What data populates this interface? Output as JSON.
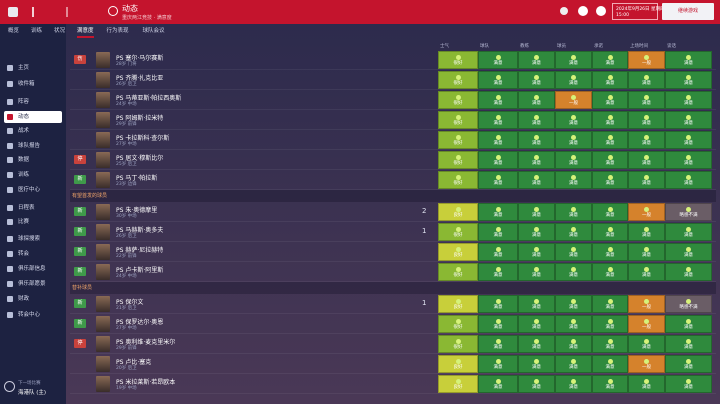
{
  "header": {
    "title": "动态",
    "subtitle": "重庆两江竞技 · 满意度",
    "date": "2024年9月26日 星期四",
    "time": "15:00",
    "continue": "继续游戏"
  },
  "tabs": [
    "概览",
    "训练",
    "状况",
    "满意度",
    "行为表现",
    "球队会议"
  ],
  "active_tab": 3,
  "sidebar": [
    "主页",
    "收件箱",
    "阵容",
    "动态",
    "战术",
    "球队报告",
    "数据",
    "训练",
    "医疗中心",
    "日程表",
    "比赛",
    "球探搜索",
    "转会",
    "俱乐部信息",
    "俱乐部愿景",
    "财政",
    "转会中心"
  ],
  "active_sidebar": 3,
  "footer": {
    "label": "下一场比赛",
    "value": "海港队 (主)"
  },
  "columns": [
    "士气",
    "球队",
    "教练",
    "球员",
    "承诺",
    "上场时间",
    "谈话"
  ],
  "groups": [
    {
      "title": null,
      "players": [
        {
          "tag": "伤",
          "tag_color": "#c9423c",
          "name": "PS 塞尔·马尔赛斯",
          "info": "28岁 门将",
          "sel": null,
          "cells": [
            [
              "很好",
              "#8ab833"
            ],
            [
              "满意",
              "#2f8a3d"
            ],
            [
              "满意",
              "#2f8a3d"
            ],
            [
              "满意",
              "#2f8a3d"
            ],
            [
              "满意",
              "#2f8a3d"
            ],
            [
              "一般",
              "#d5822c"
            ],
            [
              "满意",
              "#2f8a3d"
            ]
          ]
        },
        {
          "tag": null,
          "tag_color": null,
          "name": "PS 齐腾·扎克比亚",
          "info": "26岁 后卫",
          "sel": null,
          "cells": [
            [
              "很好",
              "#8ab833"
            ],
            [
              "满意",
              "#2f8a3d"
            ],
            [
              "满意",
              "#2f8a3d"
            ],
            [
              "满意",
              "#2f8a3d"
            ],
            [
              "满意",
              "#2f8a3d"
            ],
            [
              "满意",
              "#2f8a3d"
            ],
            [
              "满意",
              "#2f8a3d"
            ]
          ]
        },
        {
          "tag": null,
          "tag_color": null,
          "name": "PS 马蒂亚斯·帕拉西奥斯",
          "info": "24岁 中场",
          "sel": null,
          "cells": [
            [
              "很好",
              "#8ab833"
            ],
            [
              "满意",
              "#2f8a3d"
            ],
            [
              "满意",
              "#2f8a3d"
            ],
            [
              "一般",
              "#d5822c"
            ],
            [
              "满意",
              "#2f8a3d"
            ],
            [
              "满意",
              "#2f8a3d"
            ],
            [
              "满意",
              "#2f8a3d"
            ]
          ]
        },
        {
          "tag": null,
          "tag_color": null,
          "name": "PS 阿姆斯·拉米特",
          "info": "29岁 前锋",
          "sel": null,
          "cells": [
            [
              "很好",
              "#8ab833"
            ],
            [
              "满意",
              "#2f8a3d"
            ],
            [
              "满意",
              "#2f8a3d"
            ],
            [
              "满意",
              "#2f8a3d"
            ],
            [
              "满意",
              "#2f8a3d"
            ],
            [
              "满意",
              "#2f8a3d"
            ],
            [
              "满意",
              "#2f8a3d"
            ]
          ]
        },
        {
          "tag": null,
          "tag_color": null,
          "name": "PS 卡拉斯科·查尔斯",
          "info": "27岁 中场",
          "sel": null,
          "cells": [
            [
              "很好",
              "#8ab833"
            ],
            [
              "满意",
              "#2f8a3d"
            ],
            [
              "满意",
              "#2f8a3d"
            ],
            [
              "满意",
              "#2f8a3d"
            ],
            [
              "满意",
              "#2f8a3d"
            ],
            [
              "满意",
              "#2f8a3d"
            ],
            [
              "满意",
              "#2f8a3d"
            ]
          ]
        },
        {
          "tag": "停",
          "tag_color": "#c9423c",
          "name": "PS 居文·穆斯比尔",
          "info": "25岁 后卫",
          "sel": null,
          "cells": [
            [
              "很好",
              "#8ab833"
            ],
            [
              "满意",
              "#2f8a3d"
            ],
            [
              "满意",
              "#2f8a3d"
            ],
            [
              "满意",
              "#2f8a3d"
            ],
            [
              "满意",
              "#2f8a3d"
            ],
            [
              "满意",
              "#2f8a3d"
            ],
            [
              "满意",
              "#2f8a3d"
            ]
          ]
        },
        {
          "tag": "新",
          "tag_color": "#3f9a4a",
          "name": "PS 马丁·帕拉斯",
          "info": "23岁 边锋",
          "sel": null,
          "cells": [
            [
              "很好",
              "#8ab833"
            ],
            [
              "满意",
              "#2f8a3d"
            ],
            [
              "满意",
              "#2f8a3d"
            ],
            [
              "满意",
              "#2f8a3d"
            ],
            [
              "满意",
              "#2f8a3d"
            ],
            [
              "满意",
              "#2f8a3d"
            ],
            [
              "满意",
              "#2f8a3d"
            ]
          ]
        }
      ]
    },
    {
      "title": "有望首发的球员",
      "players": [
        {
          "tag": "新",
          "tag_color": "#3f9a4a",
          "name": "PS 朱·奥德摩里",
          "info": "30岁 中场",
          "sel": "2",
          "cells": [
            [
              "良好",
              "#c8cf3a"
            ],
            [
              "满意",
              "#2f8a3d"
            ],
            [
              "满意",
              "#2f8a3d"
            ],
            [
              "满意",
              "#2f8a3d"
            ],
            [
              "满意",
              "#2f8a3d"
            ],
            [
              "一般",
              "#d5822c"
            ],
            [
              "略感不满",
              "#6a5d66"
            ]
          ]
        },
        {
          "tag": "新",
          "tag_color": "#3f9a4a",
          "name": "PS 马赫斯·奥多夫",
          "info": "26岁 后卫",
          "sel": "1",
          "cells": [
            [
              "很好",
              "#8ab833"
            ],
            [
              "满意",
              "#2f8a3d"
            ],
            [
              "满意",
              "#2f8a3d"
            ],
            [
              "满意",
              "#2f8a3d"
            ],
            [
              "满意",
              "#2f8a3d"
            ],
            [
              "满意",
              "#2f8a3d"
            ],
            [
              "满意",
              "#2f8a3d"
            ]
          ]
        },
        {
          "tag": "新",
          "tag_color": "#3f9a4a",
          "name": "PS 赫萨·尼拉赫特",
          "info": "22岁 前锋",
          "sel": null,
          "cells": [
            [
              "良好",
              "#c8cf3a"
            ],
            [
              "满意",
              "#2f8a3d"
            ],
            [
              "满意",
              "#2f8a3d"
            ],
            [
              "满意",
              "#2f8a3d"
            ],
            [
              "满意",
              "#2f8a3d"
            ],
            [
              "满意",
              "#2f8a3d"
            ],
            [
              "满意",
              "#2f8a3d"
            ]
          ]
        },
        {
          "tag": "新",
          "tag_color": "#3f9a4a",
          "name": "PS 卢卡斯·阿里斯",
          "info": "24岁 中场",
          "sel": null,
          "cells": [
            [
              "很好",
              "#8ab833"
            ],
            [
              "满意",
              "#2f8a3d"
            ],
            [
              "满意",
              "#2f8a3d"
            ],
            [
              "满意",
              "#2f8a3d"
            ],
            [
              "满意",
              "#2f8a3d"
            ],
            [
              "满意",
              "#2f8a3d"
            ],
            [
              "满意",
              "#2f8a3d"
            ]
          ]
        }
      ]
    },
    {
      "title": "替补球员",
      "players": [
        {
          "tag": "新",
          "tag_color": "#3f9a4a",
          "name": "PS 保尔文",
          "info": "21岁 后卫",
          "sel": "1",
          "cells": [
            [
              "良好",
              "#c8cf3a"
            ],
            [
              "满意",
              "#2f8a3d"
            ],
            [
              "满意",
              "#2f8a3d"
            ],
            [
              "满意",
              "#2f8a3d"
            ],
            [
              "满意",
              "#2f8a3d"
            ],
            [
              "一般",
              "#d5822c"
            ],
            [
              "略感不满",
              "#6a5d66"
            ]
          ]
        },
        {
          "tag": "新",
          "tag_color": "#3f9a4a",
          "name": "PS 保罗达尔·奥恩",
          "info": "27岁 中场",
          "sel": null,
          "cells": [
            [
              "很好",
              "#8ab833"
            ],
            [
              "满意",
              "#2f8a3d"
            ],
            [
              "满意",
              "#2f8a3d"
            ],
            [
              "满意",
              "#2f8a3d"
            ],
            [
              "满意",
              "#2f8a3d"
            ],
            [
              "一般",
              "#d5822c"
            ],
            [
              "满意",
              "#2f8a3d"
            ]
          ]
        },
        {
          "tag": "停",
          "tag_color": "#c9423c",
          "name": "PS 奥利维·麦克里米尔",
          "info": "29岁 前锋",
          "sel": null,
          "cells": [
            [
              "很好",
              "#8ab833"
            ],
            [
              "满意",
              "#2f8a3d"
            ],
            [
              "满意",
              "#2f8a3d"
            ],
            [
              "满意",
              "#2f8a3d"
            ],
            [
              "满意",
              "#2f8a3d"
            ],
            [
              "满意",
              "#2f8a3d"
            ],
            [
              "满意",
              "#2f8a3d"
            ]
          ]
        },
        {
          "tag": null,
          "tag_color": null,
          "name": "PS 卢比·塞克",
          "info": "20岁 后卫",
          "sel": null,
          "cells": [
            [
              "良好",
              "#c8cf3a"
            ],
            [
              "满意",
              "#2f8a3d"
            ],
            [
              "满意",
              "#2f8a3d"
            ],
            [
              "满意",
              "#2f8a3d"
            ],
            [
              "满意",
              "#2f8a3d"
            ],
            [
              "一般",
              "#d5822c"
            ],
            [
              "满意",
              "#2f8a3d"
            ]
          ]
        },
        {
          "tag": null,
          "tag_color": null,
          "name": "PS 米拉莱斯·若昂欧本",
          "info": "19岁 中场",
          "sel": null,
          "cells": [
            [
              "良好",
              "#c8cf3a"
            ],
            [
              "满意",
              "#2f8a3d"
            ],
            [
              "满意",
              "#2f8a3d"
            ],
            [
              "满意",
              "#2f8a3d"
            ],
            [
              "满意",
              "#2f8a3d"
            ],
            [
              "满意",
              "#2f8a3d"
            ],
            [
              "满意",
              "#2f8a3d"
            ]
          ]
        }
      ]
    }
  ]
}
